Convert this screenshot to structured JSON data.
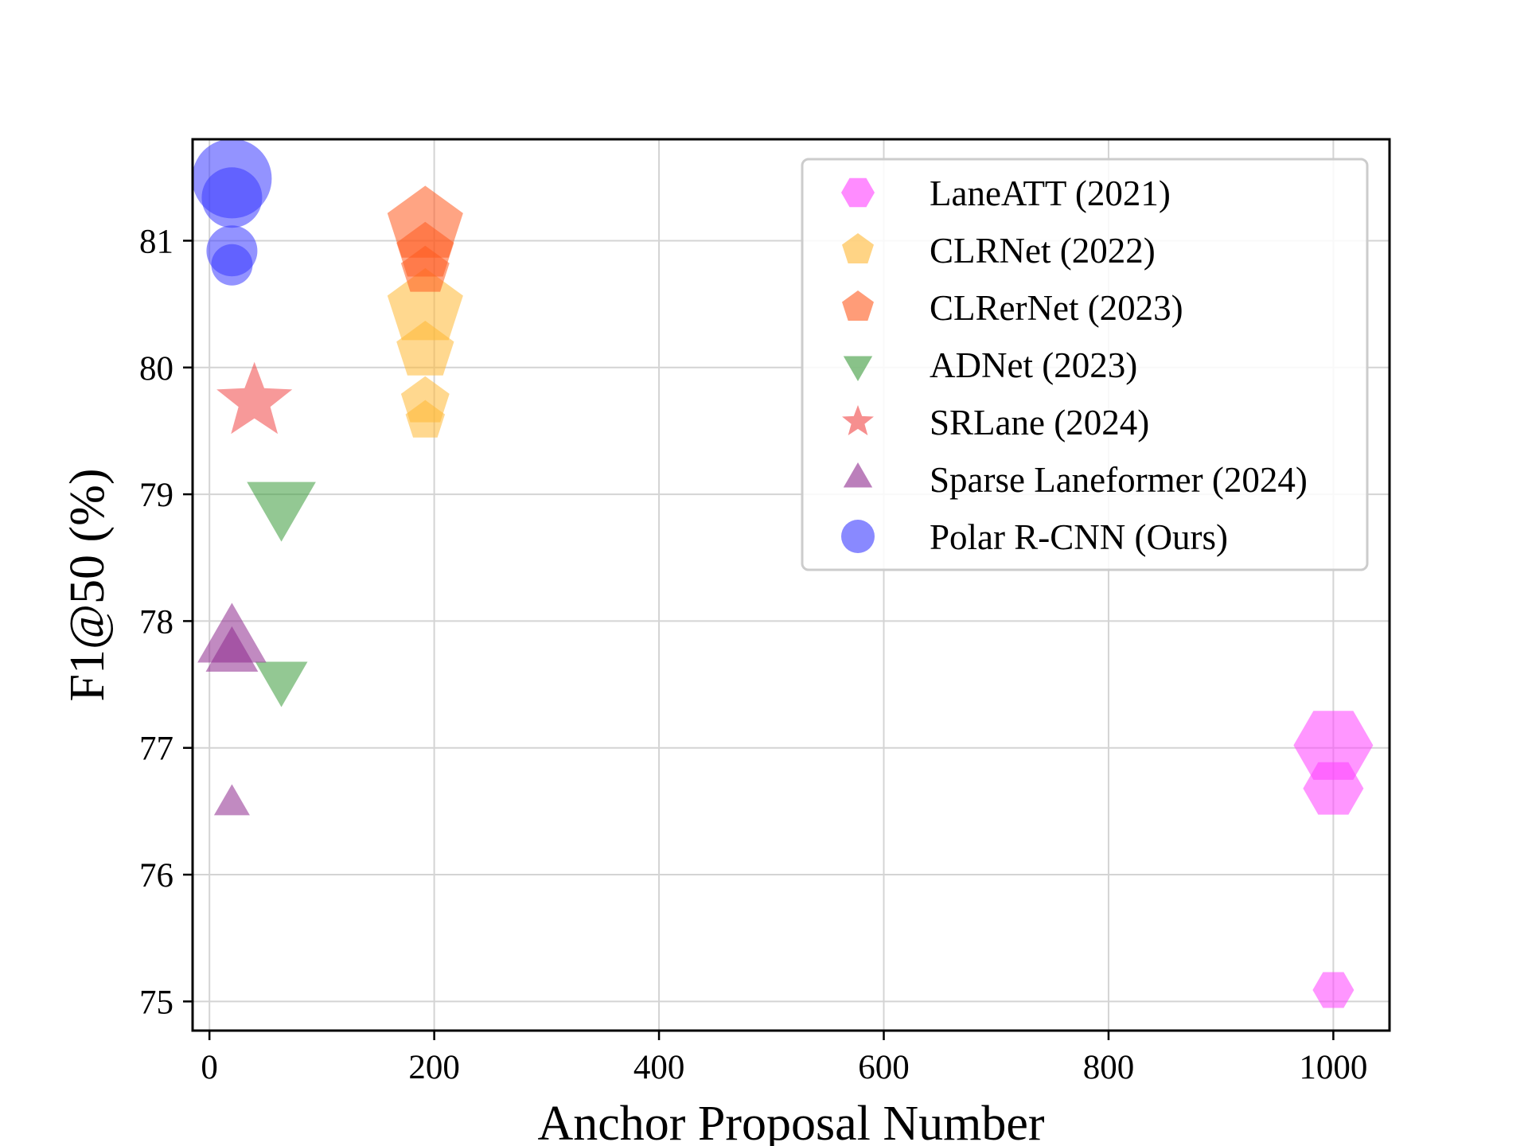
{
  "chart_data": {
    "type": "scatter",
    "title": "",
    "xlabel": "Anchor Proposal Number",
    "ylabel": "F1@50 (%)",
    "xlim": [
      -15,
      1050
    ],
    "ylim": [
      74.77,
      81.8
    ],
    "xticks": [
      0,
      200,
      400,
      600,
      800,
      1000
    ],
    "yticks": [
      75,
      76,
      77,
      78,
      79,
      80,
      81
    ],
    "grid": true,
    "legend_position": "top-right",
    "series": [
      {
        "name": "LaneATT (2021)",
        "marker": "hexagon",
        "color": "#ff40ff",
        "points": [
          {
            "x": 1000,
            "y": 77.02,
            "size": 3
          },
          {
            "x": 1000,
            "y": 76.68,
            "size": 2
          },
          {
            "x": 1000,
            "y": 75.09,
            "size": 1
          }
        ]
      },
      {
        "name": "CLRNet (2022)",
        "marker": "pentagon",
        "color": "#ffb833",
        "points": [
          {
            "x": 192,
            "y": 80.47,
            "size": 3
          },
          {
            "x": 192,
            "y": 80.13,
            "size": 2
          },
          {
            "x": 192,
            "y": 79.73,
            "size": 1.5
          },
          {
            "x": 192,
            "y": 79.58,
            "size": 1
          }
        ]
      },
      {
        "name": "CLRerNet (2023)",
        "marker": "pentagon",
        "color": "#ff5a1e",
        "points": [
          {
            "x": 192,
            "y": 81.12,
            "size": 3
          },
          {
            "x": 192,
            "y": 80.91,
            "size": 2
          },
          {
            "x": 192,
            "y": 80.76,
            "size": 1.5
          }
        ]
      },
      {
        "name": "ADNet (2023)",
        "marker": "triangle-down",
        "color": "#3a9a3a",
        "points": [
          {
            "x": 64,
            "y": 78.94,
            "size": 3
          },
          {
            "x": 64,
            "y": 77.56,
            "size": 2
          }
        ]
      },
      {
        "name": "SRLane (2024)",
        "marker": "star",
        "color": "#f04545",
        "points": [
          {
            "x": 40,
            "y": 79.73,
            "size": 3
          }
        ]
      },
      {
        "name": "Sparse Laneformer (2024)",
        "marker": "triangle-up",
        "color": "#8e2a8e",
        "points": [
          {
            "x": 20,
            "y": 77.83,
            "size": 3
          },
          {
            "x": 20,
            "y": 77.72,
            "size": 2
          },
          {
            "x": 20,
            "y": 76.55,
            "size": 1
          }
        ]
      },
      {
        "name": "Polar R-CNN (Ours)",
        "marker": "circle",
        "color": "#3a3aff",
        "points": [
          {
            "x": 20,
            "y": 81.49,
            "size": 3
          },
          {
            "x": 20,
            "y": 81.34,
            "size": 2
          },
          {
            "x": 20,
            "y": 80.92,
            "size": 1.5
          },
          {
            "x": 20,
            "y": 80.81,
            "size": 1
          }
        ]
      }
    ]
  }
}
